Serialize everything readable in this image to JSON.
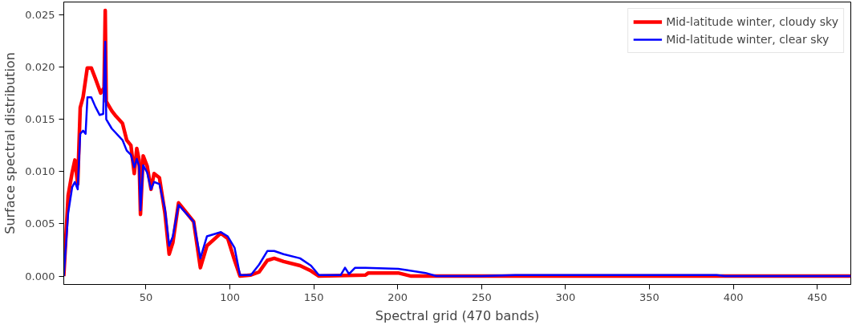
{
  "chart_data": {
    "type": "line",
    "xlabel": "Spectral grid (470 bands)",
    "ylabel": "Surface spectral distribution",
    "xlim": [
      1,
      470
    ],
    "ylim": [
      -0.0008,
      0.0262
    ],
    "xticks": [
      50,
      100,
      150,
      200,
      250,
      300,
      350,
      400,
      450
    ],
    "yticks": [
      {
        "value": 0,
        "label": "0.000"
      },
      {
        "value": 0.005,
        "label": "0.005"
      },
      {
        "value": 0.01,
        "label": "0.010"
      },
      {
        "value": 0.015,
        "label": "0.015"
      },
      {
        "value": 0.02,
        "label": "0.020"
      },
      {
        "value": 0.025,
        "label": "0.025"
      }
    ],
    "grid": false,
    "legend": "top right",
    "marker": "none",
    "line_style": "solid",
    "series": [
      {
        "name": "Mid-latitude winter, cloudy sky",
        "color": "#ff0000",
        "x": [
          1,
          3.6,
          6,
          7.6,
          9.3,
          10.8,
          12.5,
          15,
          17.4,
          19.8,
          23,
          25,
          25.7,
          26.3,
          29.6,
          32,
          36,
          38.5,
          41,
          43,
          44.5,
          45.9,
          46.7,
          48.3,
          50.7,
          53,
          54.8,
          58,
          61.3,
          63.8,
          66,
          69.4,
          78.4,
          82.4,
          86.3,
          94.6,
          98.7,
          102.8,
          106,
          112.5,
          117.4,
          122.3,
          126.4,
          132,
          141.8,
          148.3,
          153,
          180.8,
          182.5,
          200.3,
          208,
          230,
          470
        ],
        "values": [
          0,
          0.0077,
          0.0099,
          0.0111,
          0.0088,
          0.0161,
          0.0171,
          0.0199,
          0.0199,
          0.0189,
          0.0175,
          0.018,
          0.0254,
          0.0167,
          0.0158,
          0.0153,
          0.0146,
          0.013,
          0.0125,
          0.0098,
          0.0122,
          0.0111,
          0.0059,
          0.0115,
          0.0105,
          0.0083,
          0.0098,
          0.0094,
          0.006,
          0.0021,
          0.0032,
          0.007,
          0.0052,
          0.0008,
          0.0029,
          0.0041,
          0.0036,
          0.0015,
          0,
          0.0001,
          0.0004,
          0.0015,
          0.0017,
          0.0014,
          0.001,
          0.0005,
          0,
          0.0001,
          0.0003,
          0.0003,
          0,
          0,
          0
        ]
      },
      {
        "name": "Mid-latitude winter, clear sky",
        "color": "#0000ff",
        "x": [
          1,
          3.6,
          6,
          7.6,
          9.3,
          10.8,
          12.5,
          14,
          15.1,
          17.4,
          19.8,
          22.4,
          24.5,
          25.7,
          26.3,
          29.6,
          36,
          38.5,
          41,
          43,
          44.5,
          45.9,
          46.7,
          48.3,
          50.7,
          53,
          54.8,
          58,
          61.3,
          63.8,
          66,
          69.4,
          78.4,
          82.4,
          86.3,
          94.6,
          98.7,
          102.8,
          106,
          112.5,
          117.4,
          122.3,
          126.4,
          132,
          141.8,
          148.3,
          153,
          166,
          168.6,
          171,
          174.6,
          180.8,
          200.3,
          216.6,
          223,
          250,
          270,
          390,
          395,
          470
        ],
        "values": [
          0,
          0.006,
          0.0085,
          0.009,
          0.0083,
          0.0136,
          0.0139,
          0.0136,
          0.0171,
          0.0171,
          0.0162,
          0.0154,
          0.0155,
          0.0224,
          0.015,
          0.0141,
          0.013,
          0.012,
          0.0116,
          0.0104,
          0.0112,
          0.0105,
          0.0063,
          0.0106,
          0.0099,
          0.0083,
          0.009,
          0.0088,
          0.0064,
          0.0029,
          0.0038,
          0.0068,
          0.0052,
          0.0017,
          0.0038,
          0.0042,
          0.0038,
          0.0027,
          0.0001,
          0.0001,
          0.0011,
          0.0024,
          0.0024,
          0.0021,
          0.0017,
          0.001,
          0.0001,
          0.0001,
          0.0008,
          0.0002,
          0.0008,
          0.0008,
          0.0007,
          0.0003,
          0,
          0,
          0.0001,
          0.0001,
          0,
          0
        ]
      }
    ]
  }
}
